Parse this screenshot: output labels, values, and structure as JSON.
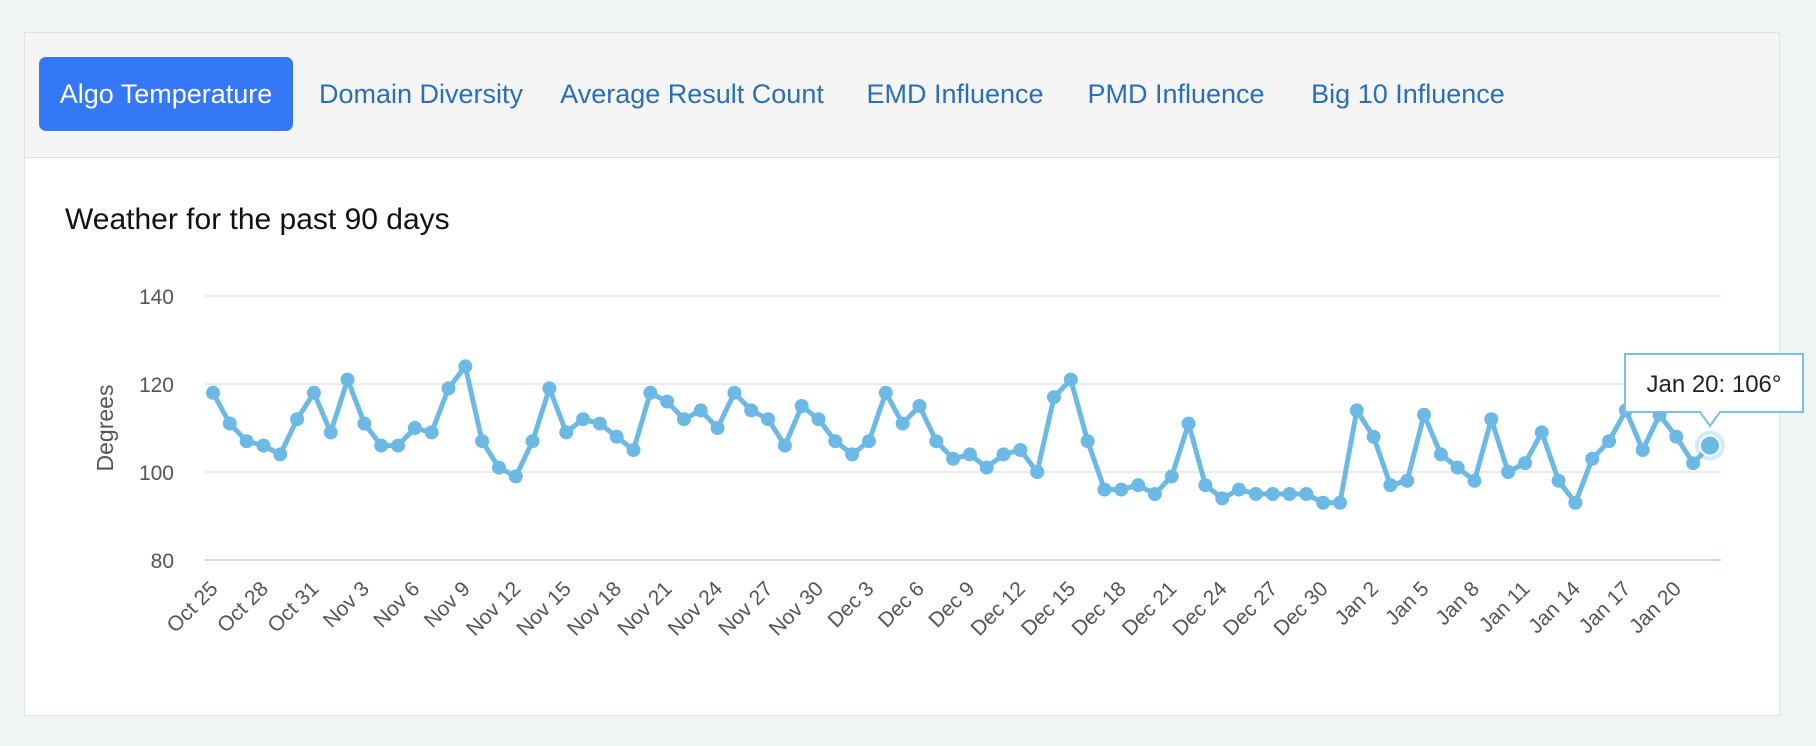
{
  "tabs": [
    {
      "label": "Algo Temperature",
      "active": true
    },
    {
      "label": "Domain Diversity",
      "active": false
    },
    {
      "label": "Average Result Count",
      "active": false
    },
    {
      "label": "EMD Influence",
      "active": false
    },
    {
      "label": "PMD Influence",
      "active": false
    },
    {
      "label": "Big 10 Influence",
      "active": false
    }
  ],
  "colors": {
    "accent": "#3478f6",
    "tab_text": "#2a6fb5",
    "line": "#6cb9e6"
  },
  "chart_data": {
    "type": "line",
    "title": "Weather for the past 90 days",
    "ylabel": "Degrees",
    "xlabel": "",
    "ylim": [
      80,
      140
    ],
    "yticks": [
      80,
      100,
      120,
      140
    ],
    "grid": true,
    "x_tick_labels": [
      "Oct 25",
      "Oct 28",
      "Oct 31",
      "Nov 3",
      "Nov 6",
      "Nov 9",
      "Nov 12",
      "Nov 15",
      "Nov 18",
      "Nov 21",
      "Nov 24",
      "Nov 27",
      "Nov 30",
      "Dec 3",
      "Dec 6",
      "Dec 9",
      "Dec 12",
      "Dec 15",
      "Dec 18",
      "Dec 21",
      "Dec 24",
      "Dec 27",
      "Dec 30",
      "Jan 2",
      "Jan 5",
      "Jan 8",
      "Jan 11",
      "Jan 14",
      "Jan 17",
      "Jan 20"
    ],
    "series": [
      {
        "values": [
          118,
          111,
          107,
          106,
          104,
          112,
          118,
          109,
          121,
          111,
          106,
          106,
          110,
          109,
          119,
          124,
          107,
          101,
          99,
          107,
          119,
          109,
          112,
          111,
          108,
          105,
          118,
          116,
          112,
          114,
          110,
          118,
          114,
          112,
          106,
          115,
          112,
          107,
          104,
          107,
          118,
          111,
          115,
          107,
          103,
          104,
          101,
          104,
          105,
          100,
          117,
          121,
          107,
          96,
          96,
          97,
          95,
          99,
          111,
          97,
          94,
          96,
          95,
          95,
          95,
          95,
          93,
          93,
          114,
          108,
          97,
          98,
          113,
          104,
          101,
          98,
          112,
          100,
          102,
          109,
          98,
          93,
          103,
          107,
          114,
          105,
          113,
          108,
          102,
          106
        ]
      }
    ],
    "tooltip": {
      "text": "Jan 20: 106°",
      "point_index": 89
    }
  }
}
